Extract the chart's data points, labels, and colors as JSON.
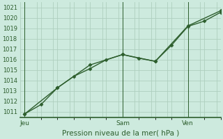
{
  "bg_color": "#cdeade",
  "grid_color": "#aecfbe",
  "line_color": "#2d5e2d",
  "marker_color": "#2d5e2d",
  "xlabel": "Pression niveau de la mer( hPa )",
  "xlabel_color": "#2d5e2d",
  "tick_color": "#2d5e2d",
  "ylim": [
    1010.5,
    1021.5
  ],
  "yticks": [
    1011,
    1012,
    1013,
    1014,
    1015,
    1016,
    1017,
    1018,
    1019,
    1020,
    1021
  ],
  "xtick_labels": [
    "Jeu",
    "Sam",
    "Ven"
  ],
  "xtick_positions": [
    0,
    48,
    80
  ],
  "xlim": [
    -2,
    96
  ],
  "vlines": [
    0,
    48,
    80
  ],
  "line1_x": [
    0,
    8,
    16,
    24,
    32,
    40,
    48,
    56,
    64,
    72,
    80,
    88,
    96
  ],
  "line1_y": [
    1010.8,
    1011.7,
    1013.3,
    1014.4,
    1015.15,
    1016.0,
    1016.5,
    1016.15,
    1015.85,
    1017.4,
    1019.2,
    1019.7,
    1020.55
  ],
  "line2_x": [
    0,
    16,
    32,
    48,
    64,
    80,
    96
  ],
  "line2_y": [
    1010.8,
    1013.3,
    1015.5,
    1016.5,
    1015.85,
    1019.25,
    1020.7
  ],
  "spine_color": "#2d5e2d",
  "fontsize_ytick": 6.0,
  "fontsize_xtick": 6.5,
  "fontsize_xlabel": 7.5,
  "linewidth": 1.0,
  "markersize": 2.5
}
